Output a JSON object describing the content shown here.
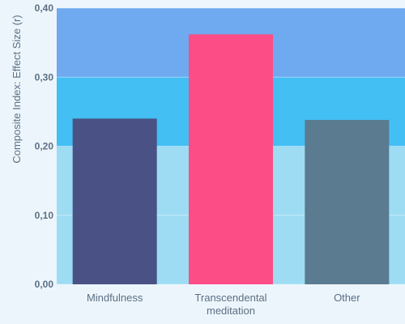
{
  "chart_data": {
    "type": "bar",
    "title": "",
    "xlabel": "",
    "ylabel": "Composite Index: Effect Size (r)",
    "ylim": [
      0,
      0.4
    ],
    "yticks": [
      "0,00",
      "0,10",
      "0,20",
      "0,30",
      "0,40"
    ],
    "categories": [
      [
        "Mindfulness"
      ],
      [
        "Transcendental",
        "meditation"
      ],
      [
        "Other"
      ]
    ],
    "values": [
      0.24,
      0.362,
      0.238
    ],
    "bar_colors": [
      "#4a5285",
      "#fd4d86",
      "#5a7b90"
    ],
    "bands": [
      {
        "from": 0.0,
        "to": 0.1,
        "color": "#9ddcf3"
      },
      {
        "from": 0.1,
        "to": 0.2,
        "color": "#9ddcf3"
      },
      {
        "from": 0.2,
        "to": 0.3,
        "color": "#43bff3"
      },
      {
        "from": 0.3,
        "to": 0.4,
        "color": "#6fa9f0"
      }
    ],
    "grid": true,
    "legend": "none"
  }
}
